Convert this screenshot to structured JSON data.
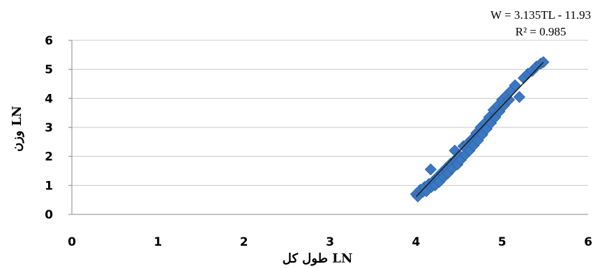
{
  "chart_data": {
    "type": "scatter",
    "xlabel": "طول کل LN",
    "ylabel": "وزن LN",
    "xlim": [
      0,
      6
    ],
    "ylim": [
      0,
      6
    ],
    "xticks": [
      "0",
      "1",
      "2",
      "3",
      "4",
      "5",
      "6"
    ],
    "yticks": [
      "0",
      "1",
      "2",
      "3",
      "4",
      "5",
      "6"
    ],
    "grid": true,
    "marker_color": "#3b78c2",
    "trendline_color": "#1a1a1a",
    "trendline": {
      "equation": "W = 3.135TL - 11.93",
      "r_squared": "R² = 0.985",
      "slope": 3.135,
      "intercept": -11.93,
      "x_range": [
        4.0,
        5.48
      ]
    },
    "points": [
      {
        "x": 4.0,
        "y": 0.7
      },
      {
        "x": 4.02,
        "y": 0.62
      },
      {
        "x": 4.05,
        "y": 0.85
      },
      {
        "x": 4.08,
        "y": 0.78
      },
      {
        "x": 4.1,
        "y": 0.95
      },
      {
        "x": 4.12,
        "y": 0.8
      },
      {
        "x": 4.15,
        "y": 1.05
      },
      {
        "x": 4.17,
        "y": 1.55
      },
      {
        "x": 4.18,
        "y": 0.95
      },
      {
        "x": 4.2,
        "y": 1.15
      },
      {
        "x": 4.22,
        "y": 1.0
      },
      {
        "x": 4.25,
        "y": 1.3
      },
      {
        "x": 4.27,
        "y": 1.12
      },
      {
        "x": 4.3,
        "y": 1.45
      },
      {
        "x": 4.32,
        "y": 1.28
      },
      {
        "x": 4.35,
        "y": 1.6
      },
      {
        "x": 4.37,
        "y": 1.42
      },
      {
        "x": 4.4,
        "y": 1.75
      },
      {
        "x": 4.42,
        "y": 1.58
      },
      {
        "x": 4.45,
        "y": 2.2
      },
      {
        "x": 4.46,
        "y": 1.9
      },
      {
        "x": 4.48,
        "y": 1.72
      },
      {
        "x": 4.5,
        "y": 2.05
      },
      {
        "x": 4.52,
        "y": 1.88
      },
      {
        "x": 4.55,
        "y": 2.35
      },
      {
        "x": 4.57,
        "y": 2.05
      },
      {
        "x": 4.6,
        "y": 2.45
      },
      {
        "x": 4.62,
        "y": 2.2
      },
      {
        "x": 4.65,
        "y": 2.6
      },
      {
        "x": 4.67,
        "y": 2.38
      },
      {
        "x": 4.7,
        "y": 2.8
      },
      {
        "x": 4.72,
        "y": 2.55
      },
      {
        "x": 4.75,
        "y": 3.0
      },
      {
        "x": 4.77,
        "y": 2.75
      },
      {
        "x": 4.8,
        "y": 3.15
      },
      {
        "x": 4.82,
        "y": 2.95
      },
      {
        "x": 4.85,
        "y": 3.35
      },
      {
        "x": 4.87,
        "y": 3.15
      },
      {
        "x": 4.9,
        "y": 3.6
      },
      {
        "x": 4.92,
        "y": 3.35
      },
      {
        "x": 4.95,
        "y": 3.75
      },
      {
        "x": 4.97,
        "y": 3.55
      },
      {
        "x": 5.0,
        "y": 3.95
      },
      {
        "x": 5.02,
        "y": 3.75
      },
      {
        "x": 5.05,
        "y": 4.1
      },
      {
        "x": 5.08,
        "y": 3.95
      },
      {
        "x": 5.1,
        "y": 4.25
      },
      {
        "x": 5.15,
        "y": 4.45
      },
      {
        "x": 5.2,
        "y": 4.05
      },
      {
        "x": 5.25,
        "y": 4.7
      },
      {
        "x": 5.3,
        "y": 4.85
      },
      {
        "x": 5.35,
        "y": 4.95
      },
      {
        "x": 5.4,
        "y": 5.1
      },
      {
        "x": 5.45,
        "y": 5.2
      },
      {
        "x": 5.48,
        "y": 5.25
      }
    ]
  }
}
